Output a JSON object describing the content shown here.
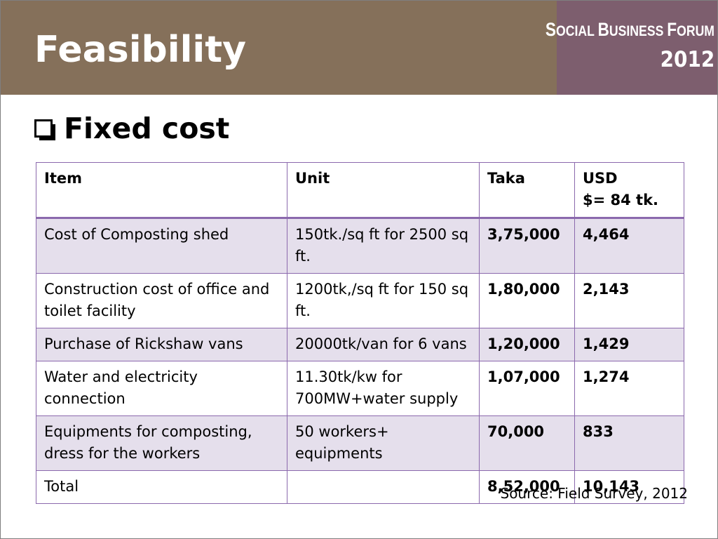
{
  "title": "Feasibility",
  "brand": {
    "line1_parts": [
      "S",
      "OCIAL ",
      "B",
      "USINESS ",
      "F",
      "ORUM"
    ],
    "line2": "2012"
  },
  "bullet": {
    "icon": "checkbox-icon",
    "text": "Fixed cost"
  },
  "table": {
    "headers": [
      "Item",
      "Unit",
      "Taka",
      "USD"
    ],
    "usd_rate": "$= 84 tk.",
    "rows": [
      {
        "item": "Cost of Composting shed",
        "unit": "150tk./sq ft for 2500 sq ft.",
        "taka": "3,75,000",
        "usd": "4,464"
      },
      {
        "item": "Construction cost of office and toilet facility",
        "unit": "1200tk,/sq ft for 150 sq ft.",
        "taka": "1,80,000",
        "usd": "2,143"
      },
      {
        "item": "Purchase of Rickshaw vans",
        "unit": "20000tk/van for 6 vans",
        "taka": "1,20,000",
        "usd": "1,429"
      },
      {
        "item": "Water and electricity connection",
        "unit": "11.30tk/kw for 700MW+water supply",
        "taka": "1,07,000",
        "usd": "1,274"
      },
      {
        "item": "Equipments for composting, dress for the workers",
        "unit": "50 workers+ equipments",
        "taka": "70,000",
        "usd": "833"
      },
      {
        "item": "Total",
        "unit": "",
        "taka": "8,52,000",
        "usd": "10,143"
      }
    ]
  },
  "source": "Source: Field Survey, 2012",
  "colors": {
    "header_bg": "#85705a",
    "brand_bg": "#7d5e6e",
    "table_border": "#8b69ad",
    "row_shade": "#e5dfec"
  }
}
